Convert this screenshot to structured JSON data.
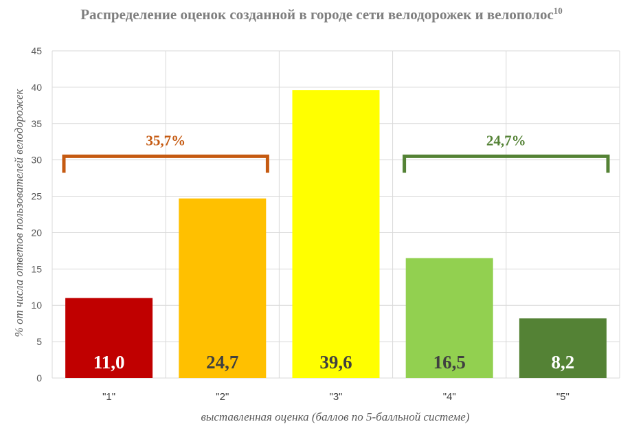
{
  "chart_data": {
    "type": "bar",
    "title": "Распределение оценок созданной в городе сети велодорожек и велополос",
    "title_footnote": "10",
    "xlabel": "выставленная оценка (баллов по 5-балльной системе)",
    "ylabel": "% от числа ответов пользователей велодорожек",
    "categories": [
      "\"1\"",
      "\"2\"",
      "\"3\"",
      "\"4\"",
      "\"5\""
    ],
    "values": [
      11.0,
      24.7,
      39.6,
      16.5,
      8.2
    ],
    "value_labels": [
      "11,0",
      "24,7",
      "39,6",
      "16,5",
      "8,2"
    ],
    "bar_colors": [
      "#c00000",
      "#ffc000",
      "#ffff00",
      "#92d050",
      "#548235"
    ],
    "label_colors": [
      "#ffffff",
      "#404040",
      "#404040",
      "#404040",
      "#ffffff"
    ],
    "ylim": [
      0,
      45
    ],
    "yticks": [
      0,
      5,
      10,
      15,
      20,
      25,
      30,
      35,
      40,
      45
    ],
    "grid": true,
    "brackets": [
      {
        "label": "35,7%",
        "from": 0,
        "to": 1,
        "level": 30.5,
        "color": "#c55a11"
      },
      {
        "label": "24,7%",
        "from": 3,
        "to": 4,
        "level": 30.5,
        "color": "#548235"
      }
    ]
  }
}
